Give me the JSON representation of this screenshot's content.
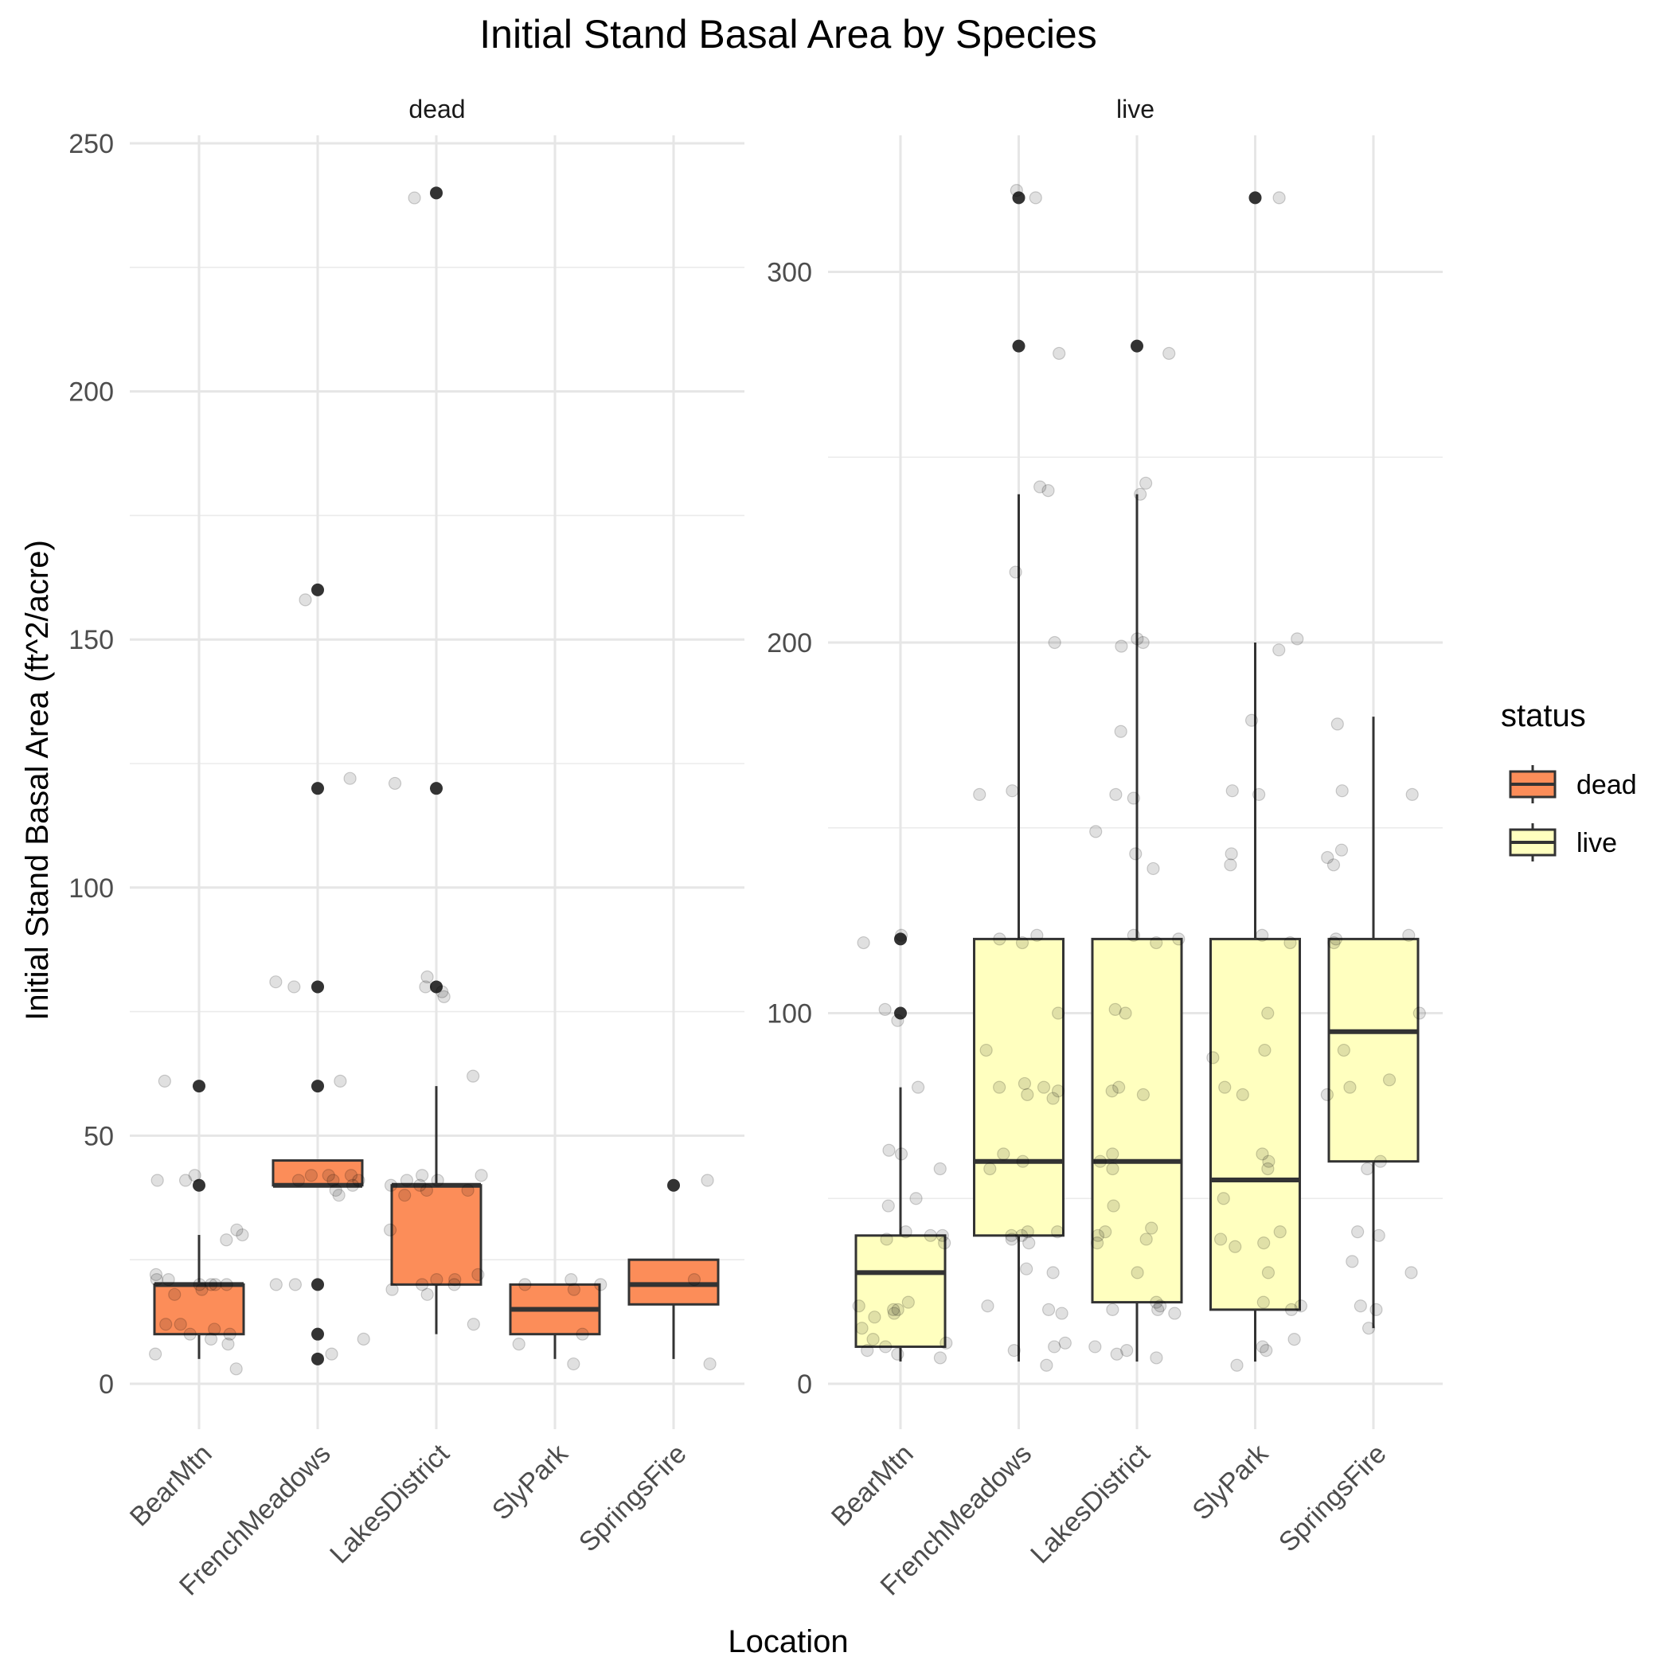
{
  "chart_data": {
    "type": "boxplot",
    "title": "Initial Stand Basal Area by Species",
    "xlabel": "Location",
    "ylabel": "Initial Stand Basal Area (ft^2/acre)",
    "categories": [
      "BearMtn",
      "FrenchMeadows",
      "LakesDistrict",
      "SlyPark",
      "SpringsFire"
    ],
    "grid": true,
    "legend": {
      "title": "status",
      "placement": "right",
      "entries": [
        {
          "label": "dead",
          "color": "#FC8D59"
        },
        {
          "label": "live",
          "color": "#FFFFBF"
        }
      ]
    },
    "facets": [
      {
        "strip": "dead",
        "status": "dead",
        "fill": "#FC8D59",
        "ylim": [
          -6,
          262
        ],
        "yticks": [
          0,
          50,
          100,
          150,
          200,
          250
        ],
        "boxes": [
          {
            "category": "BearMtn",
            "whisker_low": 5,
            "q1": 10,
            "median": 20,
            "q3": 20,
            "whisker_high": 30,
            "outliers": [
              40,
              60
            ]
          },
          {
            "category": "FrenchMeadows",
            "whisker_low": 40,
            "q1": 40,
            "median": 40,
            "q3": 45,
            "whisker_high": 45,
            "outliers": [
              5,
              10,
              20,
              60,
              80,
              120,
              160
            ]
          },
          {
            "category": "LakesDistrict",
            "whisker_low": 10,
            "q1": 20,
            "median": 40,
            "q3": 40,
            "whisker_high": 60,
            "outliers": [
              80,
              120,
              240
            ]
          },
          {
            "category": "SlyPark",
            "whisker_low": 5,
            "q1": 10,
            "median": 15,
            "q3": 20,
            "whisker_high": 20,
            "outliers": []
          },
          {
            "category": "SpringsFire",
            "whisker_low": 5,
            "q1": 16,
            "median": 20,
            "q3": 25,
            "whisker_high": 25,
            "outliers": [
              40
            ]
          }
        ],
        "jitter": {
          "BearMtn": [
            3,
            6,
            8,
            9,
            10,
            10,
            11,
            12,
            12,
            18,
            19,
            20,
            20,
            20,
            20,
            21,
            21,
            22,
            29,
            30,
            31,
            41,
            41,
            42,
            61
          ],
          "FrenchMeadows": [
            6,
            9,
            20,
            20,
            38,
            39,
            40,
            41,
            41,
            41,
            42,
            42,
            42,
            61,
            80,
            81,
            122,
            158
          ],
          "LakesDistrict": [
            12,
            18,
            19,
            20,
            20,
            21,
            21,
            22,
            31,
            38,
            39,
            39,
            40,
            40,
            41,
            41,
            42,
            42,
            62,
            78,
            79,
            80,
            82,
            121,
            239
          ],
          "SlyPark": [
            4,
            8,
            10,
            19,
            20,
            20,
            21
          ],
          "SpringsFire": [
            4,
            21,
            41
          ]
        }
      },
      {
        "strip": "live",
        "status": "live",
        "fill": "#FFFFBF",
        "ylim": [
          -9,
          335
        ],
        "yticks": [
          0,
          100,
          200,
          300
        ],
        "boxes": [
          {
            "category": "BearMtn",
            "whisker_low": 6,
            "q1": 10,
            "median": 30,
            "q3": 40,
            "whisker_high": 80,
            "outliers": [
              100,
              120
            ]
          },
          {
            "category": "FrenchMeadows",
            "whisker_low": 6,
            "q1": 40,
            "median": 60,
            "q3": 120,
            "whisker_high": 240,
            "outliers": [
              280,
              320
            ]
          },
          {
            "category": "LakesDistrict",
            "whisker_low": 6,
            "q1": 22,
            "median": 60,
            "q3": 120,
            "whisker_high": 240,
            "outliers": [
              280
            ]
          },
          {
            "category": "SlyPark",
            "whisker_low": 6,
            "q1": 20,
            "median": 55,
            "q3": 120,
            "whisker_high": 200,
            "outliers": [
              320
            ]
          },
          {
            "category": "SpringsFire",
            "whisker_low": 15,
            "q1": 60,
            "median": 95,
            "q3": 120,
            "whisker_high": 180,
            "outliers": []
          }
        ],
        "jitter": {
          "BearMtn": [
            7,
            8,
            9,
            10,
            11,
            12,
            15,
            18,
            19,
            20,
            20,
            21,
            22,
            38,
            39,
            40,
            40,
            41,
            48,
            50,
            58,
            62,
            63,
            80,
            98,
            101,
            119,
            121
          ],
          "FrenchMeadows": [
            5,
            9,
            10,
            11,
            19,
            20,
            21,
            30,
            31,
            38,
            39,
            40,
            40,
            41,
            41,
            58,
            60,
            62,
            77,
            78,
            79,
            80,
            80,
            81,
            90,
            100,
            119,
            120,
            121,
            159,
            160,
            200,
            219,
            241,
            242,
            278,
            320,
            322
          ],
          "LakesDistrict": [
            7,
            8,
            9,
            10,
            19,
            20,
            20,
            21,
            22,
            30,
            38,
            39,
            40,
            41,
            42,
            48,
            58,
            60,
            62,
            78,
            79,
            80,
            100,
            101,
            119,
            120,
            121,
            139,
            143,
            149,
            158,
            159,
            176,
            199,
            200,
            201,
            240,
            243,
            278
          ],
          "SlyPark": [
            5,
            9,
            10,
            12,
            20,
            21,
            22,
            30,
            37,
            38,
            39,
            41,
            50,
            58,
            60,
            62,
            78,
            80,
            88,
            90,
            100,
            119,
            121,
            140,
            143,
            159,
            160,
            179,
            198,
            201,
            320
          ],
          "SpringsFire": [
            15,
            20,
            21,
            30,
            33,
            40,
            41,
            58,
            60,
            78,
            80,
            82,
            90,
            100,
            119,
            120,
            121,
            140,
            142,
            144,
            159,
            160,
            178
          ]
        }
      }
    ]
  }
}
